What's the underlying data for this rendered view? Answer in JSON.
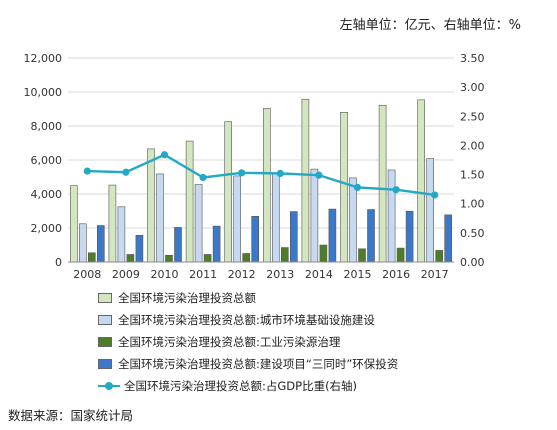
{
  "unit_note": "左轴单位：亿元、右轴单位：%",
  "source": "数据来源：国家统计局",
  "chart_data": {
    "type": "bar",
    "categories": [
      "2008",
      "2009",
      "2010",
      "2011",
      "2012",
      "2013",
      "2014",
      "2015",
      "2016",
      "2017"
    ],
    "left_axis": {
      "ylim": [
        0,
        12000
      ],
      "ticks": [
        "0",
        "2,000",
        "4,000",
        "6,000",
        "8,000",
        "10,000",
        "12,000"
      ],
      "tick_values": [
        0,
        2000,
        4000,
        6000,
        8000,
        10000,
        12000
      ]
    },
    "right_axis": {
      "ylim": [
        0,
        3.5
      ],
      "ticks": [
        "0.00",
        "0.50",
        "1.00",
        "1.50",
        "2.00",
        "2.50",
        "3.00",
        "3.50"
      ],
      "tick_values": [
        0,
        0.5,
        1,
        1.5,
        2,
        2.5,
        3,
        3.5
      ]
    },
    "series": [
      {
        "name": "全国环境污染治理投资总额",
        "type": "bar",
        "axis": "left",
        "color": "#d3e6c0",
        "values": [
          4490,
          4525,
          6654,
          7114,
          8253,
          9037,
          9576,
          8806,
          9220,
          9539
        ]
      },
      {
        "name": "全国环境污染治理投资总额:城市环境基础设施建设",
        "type": "bar",
        "axis": "left",
        "color": "#c7d9f1",
        "values": [
          2247,
          3245,
          5182,
          4557,
          5063,
          5223,
          5464,
          4947,
          5412,
          6086
        ]
      },
      {
        "name": "全国环境污染治理投资总额:工业污染源治理",
        "type": "bar",
        "axis": "left",
        "color": "#4e7d2a",
        "values": [
          543,
          443,
          397,
          444,
          500,
          850,
          998,
          774,
          819,
          682
        ]
      },
      {
        "name": "全国环境污染治理投资总额:建设项目“三同时”环保投资",
        "type": "bar",
        "axis": "left",
        "color": "#3b78c8",
        "values": [
          2146,
          1570,
          2033,
          2112,
          2690,
          2965,
          3113,
          3086,
          2989,
          2772
        ]
      },
      {
        "name": "全国环境污染治理投资总额:占GDP比重(右轴)",
        "type": "line",
        "axis": "right",
        "color": "#23a9c4",
        "values": [
          1.56,
          1.54,
          1.84,
          1.45,
          1.53,
          1.52,
          1.49,
          1.28,
          1.24,
          1.15
        ]
      }
    ]
  }
}
